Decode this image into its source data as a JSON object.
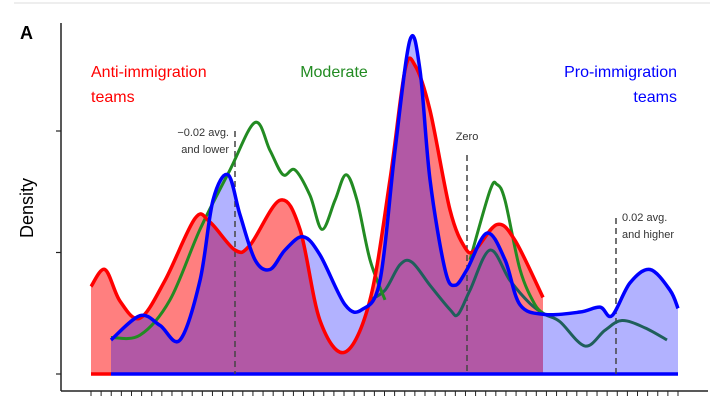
{
  "chart_data": {
    "type": "area",
    "panel_label": "A",
    "ylabel": "Density",
    "xlabel": "",
    "xlim": [
      0,
      58.7
    ],
    "ylim": [
      0,
      2.8
    ],
    "y_ticks": [
      0,
      1,
      2
    ],
    "x_tick_count": 59,
    "annotations": [
      {
        "name": "low-threshold",
        "x": 14.4,
        "lines": [
          "−0.02 avg.",
          "and lower"
        ]
      },
      {
        "name": "zero",
        "x": 37.6,
        "lines": [
          "Zero"
        ]
      },
      {
        "name": "high-threshold",
        "x": 52.5,
        "lines": [
          "0.02 avg.",
          "and higher"
        ]
      }
    ],
    "group_labels": [
      {
        "name": "anti",
        "lines": [
          "Anti-immigration",
          "teams"
        ],
        "color": "#ff0000"
      },
      {
        "name": "moderate",
        "lines": [
          "Moderate"
        ],
        "color": "#228b22"
      },
      {
        "name": "pro",
        "lines": [
          "Pro-immigration",
          "teams"
        ],
        "color": "#0000ff"
      }
    ],
    "series": [
      {
        "name": "Anti-immigration teams",
        "color": "#ff0000",
        "fill": "rgba(255,0,0,0.5)",
        "points": [
          [
            0,
            0.72
          ],
          [
            1.4,
            0.86
          ],
          [
            2.9,
            0.6
          ],
          [
            4.9,
            0.46
          ],
          [
            7.4,
            0.77
          ],
          [
            10.4,
            1.28
          ],
          [
            11.9,
            1.25
          ],
          [
            14.4,
            1.02
          ],
          [
            15.9,
            1.06
          ],
          [
            18.9,
            1.43
          ],
          [
            20.9,
            1.19
          ],
          [
            22.9,
            0.44
          ],
          [
            25.4,
            0.18
          ],
          [
            27.9,
            0.61
          ],
          [
            29.9,
            1.6
          ],
          [
            31.4,
            2.5
          ],
          [
            32.4,
            2.54
          ],
          [
            33.9,
            2.17
          ],
          [
            35.9,
            1.35
          ],
          [
            37.4,
            1.04
          ],
          [
            38.4,
            1.02
          ],
          [
            40.6,
            1.23
          ],
          [
            42.4,
            1.1
          ],
          [
            45.2,
            0.63
          ]
        ]
      },
      {
        "name": "Pro-immigration teams",
        "color": "#0000ff",
        "fill": "rgba(0,0,255,0.3)",
        "points": [
          [
            2,
            0.28
          ],
          [
            4.9,
            0.48
          ],
          [
            6.9,
            0.4
          ],
          [
            8.9,
            0.28
          ],
          [
            10.9,
            0.77
          ],
          [
            12.2,
            1.43
          ],
          [
            13.7,
            1.64
          ],
          [
            14.9,
            1.31
          ],
          [
            16.4,
            0.94
          ],
          [
            17.9,
            0.86
          ],
          [
            19.4,
            1.02
          ],
          [
            21.2,
            1.13
          ],
          [
            22.9,
            0.98
          ],
          [
            25.4,
            0.57
          ],
          [
            27.1,
            0.53
          ],
          [
            28.9,
            0.77
          ],
          [
            30.4,
            1.84
          ],
          [
            31.9,
            2.75
          ],
          [
            32.9,
            2.5
          ],
          [
            33.9,
            1.6
          ],
          [
            35.4,
            0.86
          ],
          [
            36.4,
            0.73
          ],
          [
            37.6,
            0.86
          ],
          [
            39.6,
            1.16
          ],
          [
            41.4,
            0.94
          ],
          [
            42.9,
            0.57
          ],
          [
            45.4,
            0.49
          ],
          [
            48.9,
            0.51
          ],
          [
            50.9,
            0.55
          ],
          [
            52.1,
            0.48
          ],
          [
            53.9,
            0.75
          ],
          [
            55.9,
            0.86
          ],
          [
            57.9,
            0.69
          ],
          [
            58.7,
            0.54
          ]
        ]
      },
      {
        "name": "Moderate",
        "color": "#228b22",
        "fill": "none",
        "segments": [
          [
            [
              2,
              0.3
            ],
            [
              4.9,
              0.32
            ],
            [
              7.9,
              0.61
            ],
            [
              10.9,
              1.19
            ],
            [
              13.9,
              1.68
            ],
            [
              16.4,
              2.07
            ],
            [
              17.9,
              1.84
            ],
            [
              19.2,
              1.64
            ],
            [
              20.4,
              1.68
            ],
            [
              21.9,
              1.47
            ],
            [
              23.1,
              1.19
            ],
            [
              24.4,
              1.43
            ],
            [
              25.5,
              1.64
            ],
            [
              26.6,
              1.43
            ],
            [
              27.9,
              0.94
            ],
            [
              29.4,
              0.61
            ]
          ],
          [
            [
              37.9,
              0.94
            ],
            [
              39.9,
              1.51
            ],
            [
              40.6,
              1.56
            ],
            [
              41.4,
              1.43
            ],
            [
              42.9,
              0.86
            ],
            [
              44.4,
              0.57
            ],
            [
              45.4,
              0.49
            ]
          ]
        ]
      },
      {
        "name": "Moderate (overlapped)",
        "color": "#1f5f5b",
        "fill": "none",
        "points": [
          [
            27.9,
            0.61
          ],
          [
            29.4,
            0.69
          ],
          [
            30.9,
            0.9
          ],
          [
            32.1,
            0.92
          ],
          [
            33.9,
            0.73
          ],
          [
            35.9,
            0.53
          ],
          [
            36.7,
            0.49
          ],
          [
            37.9,
            0.69
          ],
          [
            39.9,
            1.02
          ],
          [
            41.9,
            0.77
          ],
          [
            43.9,
            0.58
          ],
          [
            45.4,
            0.49
          ],
          [
            46.9,
            0.43
          ],
          [
            49.4,
            0.23
          ],
          [
            51.4,
            0.36
          ],
          [
            53.1,
            0.44
          ],
          [
            55.4,
            0.38
          ],
          [
            57.6,
            0.28
          ]
        ]
      }
    ]
  }
}
